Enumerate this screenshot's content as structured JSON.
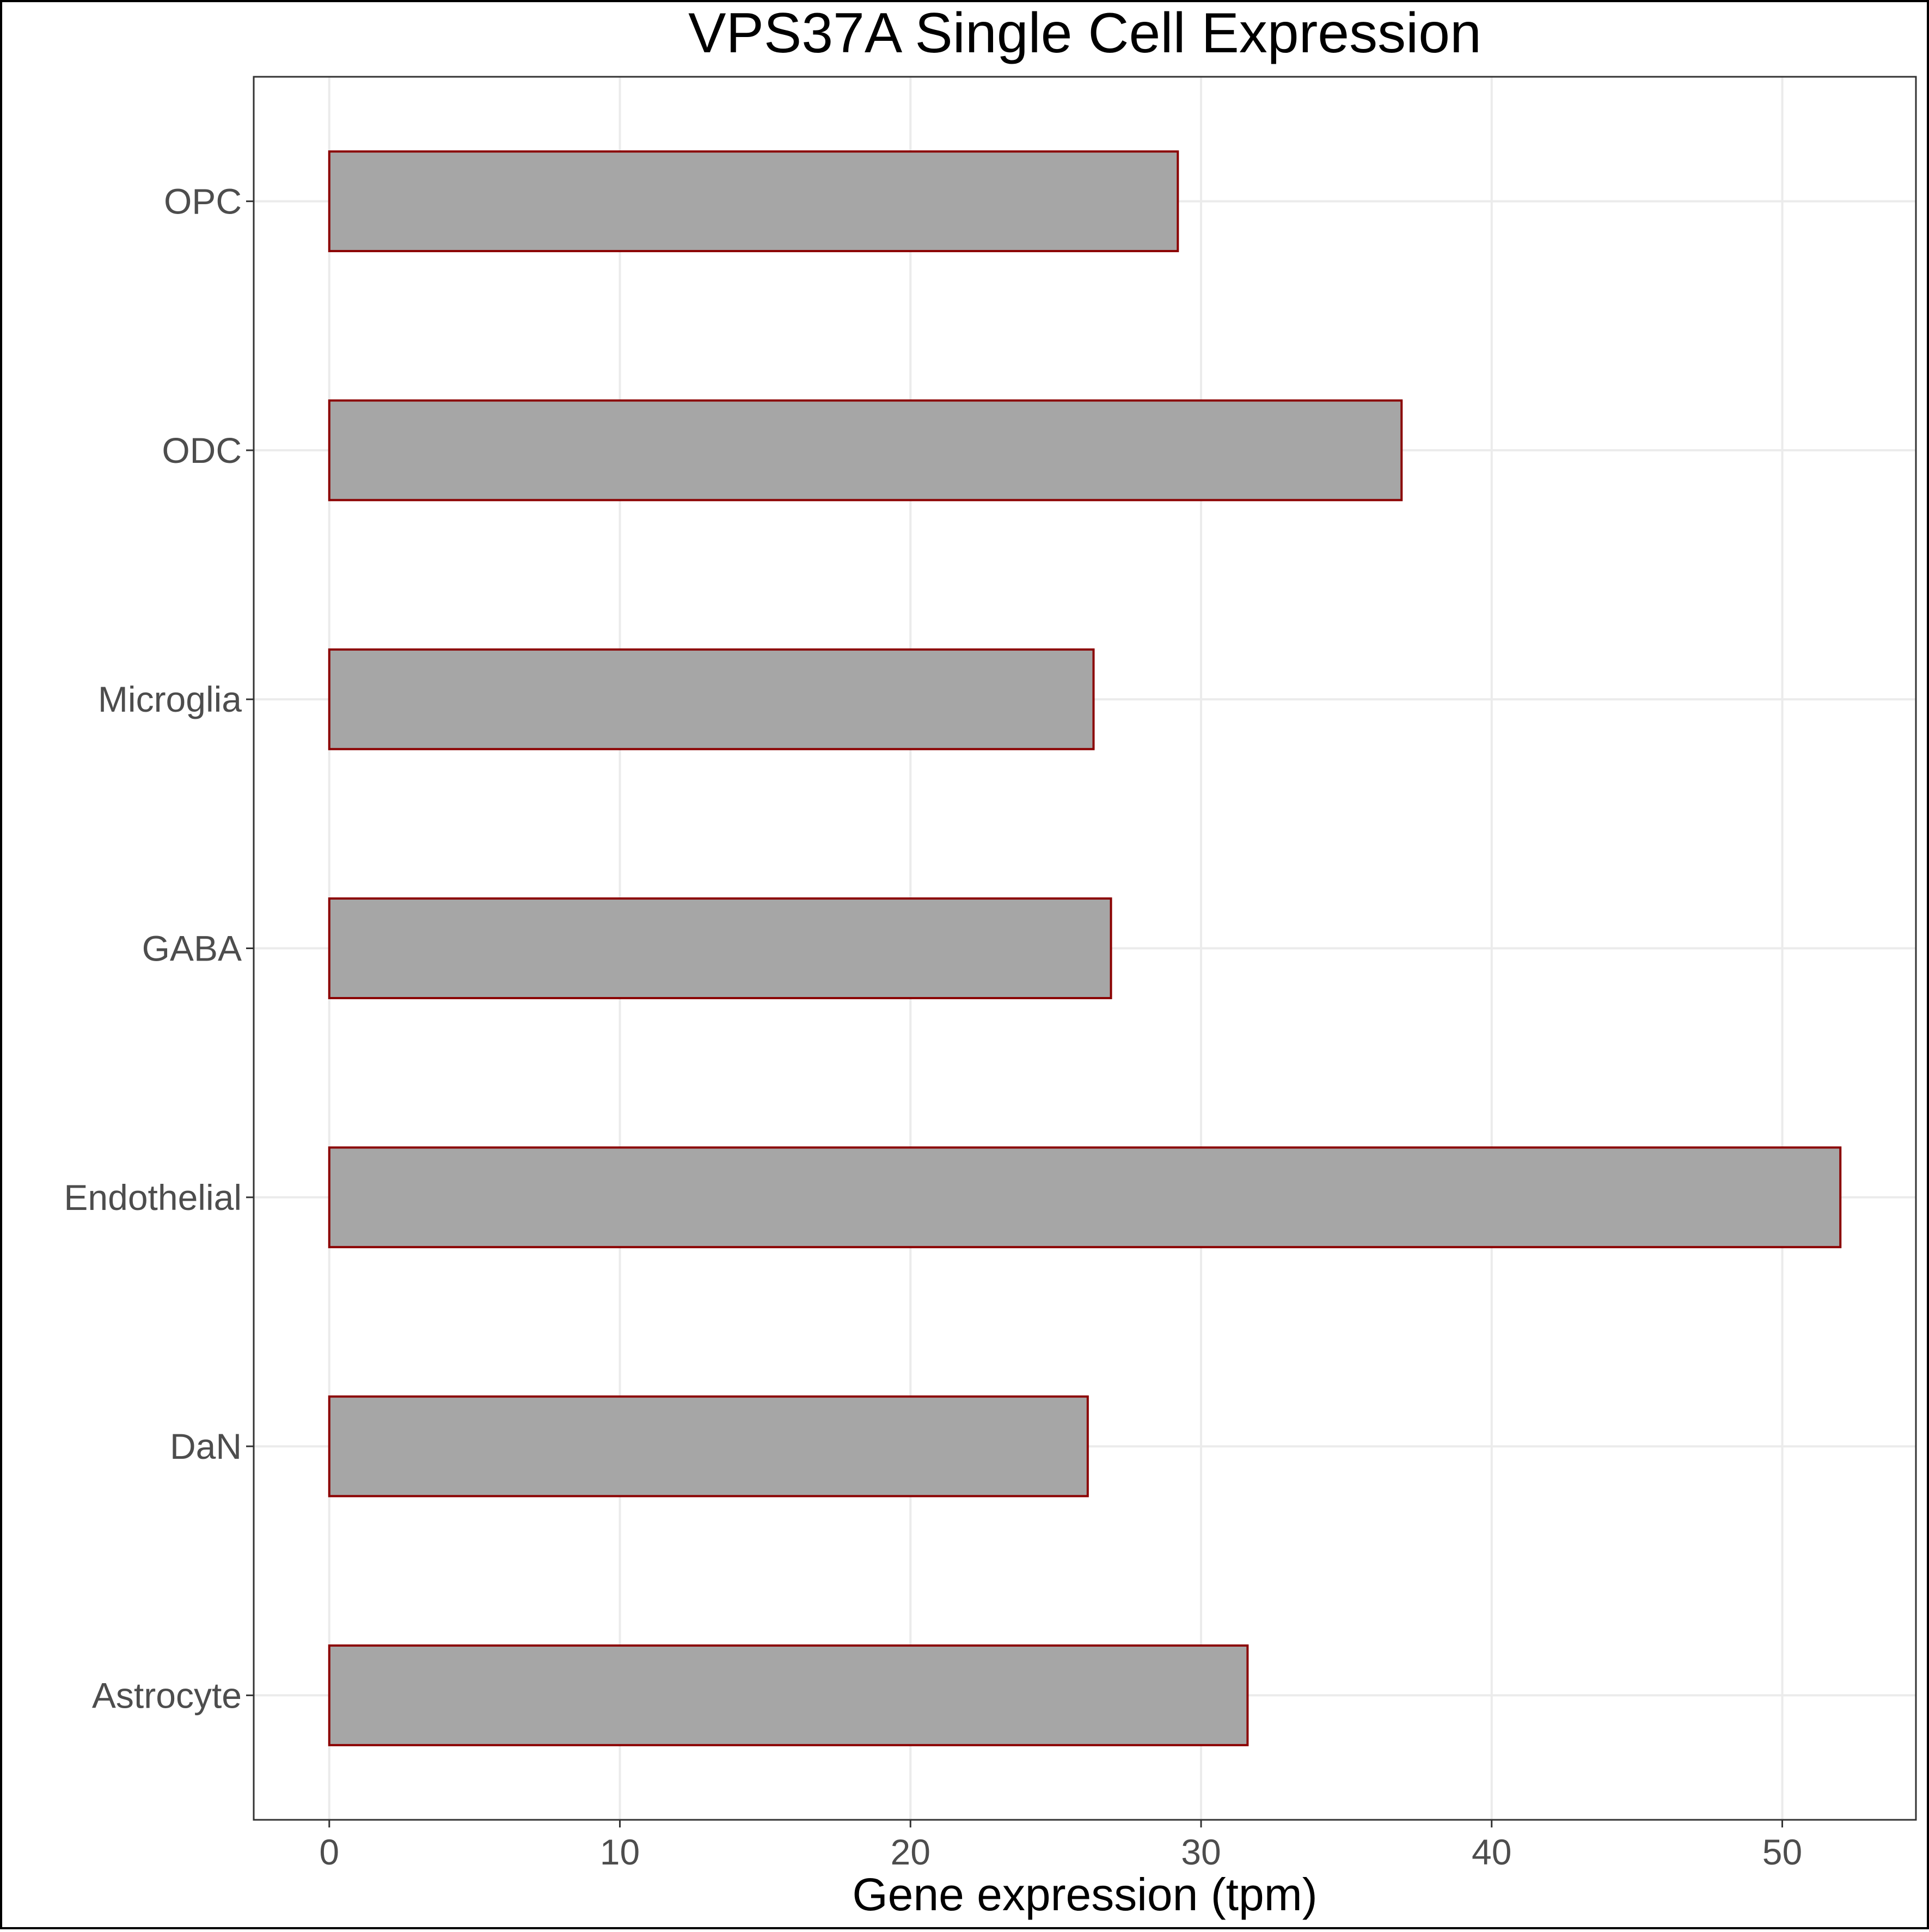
{
  "chart_data": {
    "type": "bar",
    "orientation": "horizontal",
    "title": "VPS37A Single Cell Expression",
    "xlabel": "Gene expression (tpm)",
    "ylabel": "",
    "categories": [
      "Astrocyte",
      "DaN",
      "Endothelial",
      "GABA",
      "Microglia",
      "ODC",
      "OPC"
    ],
    "values": [
      31.6,
      26.1,
      52.0,
      26.9,
      26.3,
      36.9,
      29.2
    ],
    "xlim": [
      -2.6,
      54.6
    ],
    "xticks": [
      0,
      10,
      20,
      30,
      40,
      50
    ],
    "grid": true,
    "legend": "none",
    "bar_fill": "#a6a6a6",
    "bar_outline": "#8b0000"
  }
}
